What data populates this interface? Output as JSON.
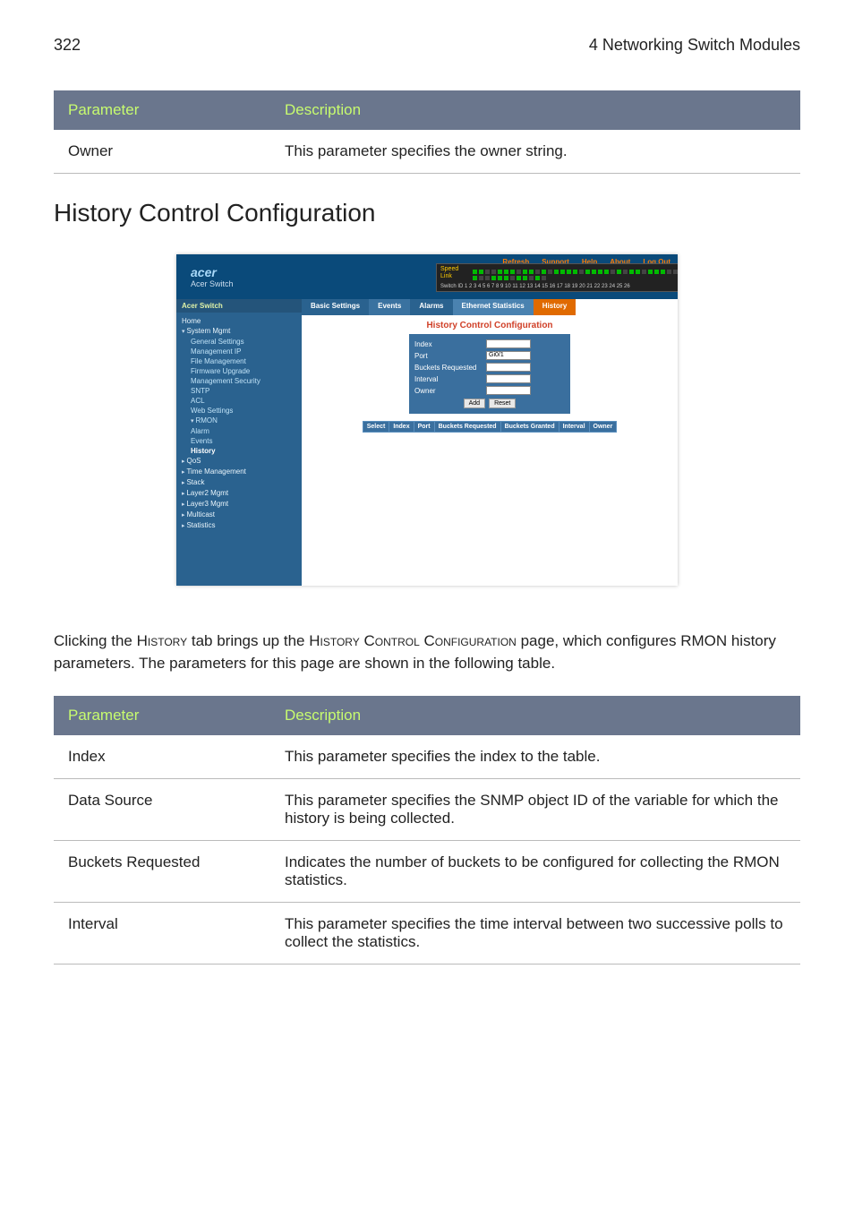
{
  "page": {
    "number": "322",
    "chapter_title": "4 Networking Switch Modules"
  },
  "table1": {
    "header_param": "Parameter",
    "header_desc": "Description",
    "header_bg": "#6a768d",
    "header_fg": "#c7fb6f",
    "rows": [
      {
        "param": "Owner",
        "desc": "This parameter specifies the owner string."
      }
    ]
  },
  "subheading": "History Control Configuration",
  "screenshot": {
    "brand": "acer",
    "brand_sub": "Acer Switch",
    "top_links": [
      "Refresh",
      "Support",
      "Help",
      "About",
      "Log Out"
    ],
    "unit_labels": {
      "line1": "Speed",
      "line2": "Link"
    },
    "port_line": "Switch ID 1 2 3 4 5 6 7 8 9 10 11 12 13 14 15 16 17 18 19 20 21 22 23 24 25 26",
    "sidebar_title": "Acer Switch",
    "nav": {
      "home": "Home",
      "sysmgmt": "System Mgmt",
      "sys_items": [
        "General Settings",
        "Management IP",
        "File Management",
        "Firmware Upgrade",
        "Management Security",
        "SNTP",
        "ACL",
        "Web Settings"
      ],
      "rmon": "RMON",
      "rmon_items": [
        "Alarm",
        "Events",
        "History"
      ],
      "tail": [
        "QoS",
        "Time Management",
        "Stack",
        "Layer2 Mgmt",
        "Layer3 Mgmt",
        "Multicast",
        "Statistics"
      ]
    },
    "tabs": {
      "basic": "Basic Settings",
      "events": "Events",
      "alarms": "Alarms",
      "eth": "Ethernet Statistics",
      "history": "History"
    },
    "panel_title": "History Control Configuration",
    "form": {
      "index_label": "Index",
      "index_value": "",
      "port_label": "Port",
      "port_value": "Gi0/1",
      "buckets_label": "Buckets Requested",
      "buckets_value": "",
      "interval_label": "Interval",
      "interval_value": "",
      "owner_label": "Owner",
      "owner_value": ""
    },
    "buttons": {
      "add": "Add",
      "reset": "Reset"
    },
    "subtable_headers": [
      "Select",
      "Index",
      "Port",
      "Buckets Requested",
      "Buckets Granted",
      "Interval",
      "Owner"
    ],
    "colors": {
      "top_bg": "#0a4a7a",
      "sidebar_bg": "#2a628f",
      "panel_bg": "#3a6f9e",
      "title_color": "#d04028",
      "active_tab_bg": "#e06a00",
      "link_color": "#ff7a00"
    }
  },
  "paragraph": {
    "p1a": "Clicking the ",
    "p1b": "History",
    "p1c": " tab brings up the ",
    "p1d": "History Control Configuration",
    "p1e": " page, which configures RMON history parameters. The parameters for this page are shown in the following table."
  },
  "table2": {
    "header_param": "Parameter",
    "header_desc": "Description",
    "rows": [
      {
        "param": "Index",
        "desc": "This parameter specifies the index to the table."
      },
      {
        "param": "Data Source",
        "desc": "This parameter specifies the SNMP object ID of the variable for which the history is being collected."
      },
      {
        "param": "Buckets Requested",
        "desc": "Indicates the number of buckets to be configured for collecting the RMON statistics."
      },
      {
        "param": "Interval",
        "desc": "This parameter specifies the time interval between two successive polls to collect the statistics."
      }
    ]
  }
}
